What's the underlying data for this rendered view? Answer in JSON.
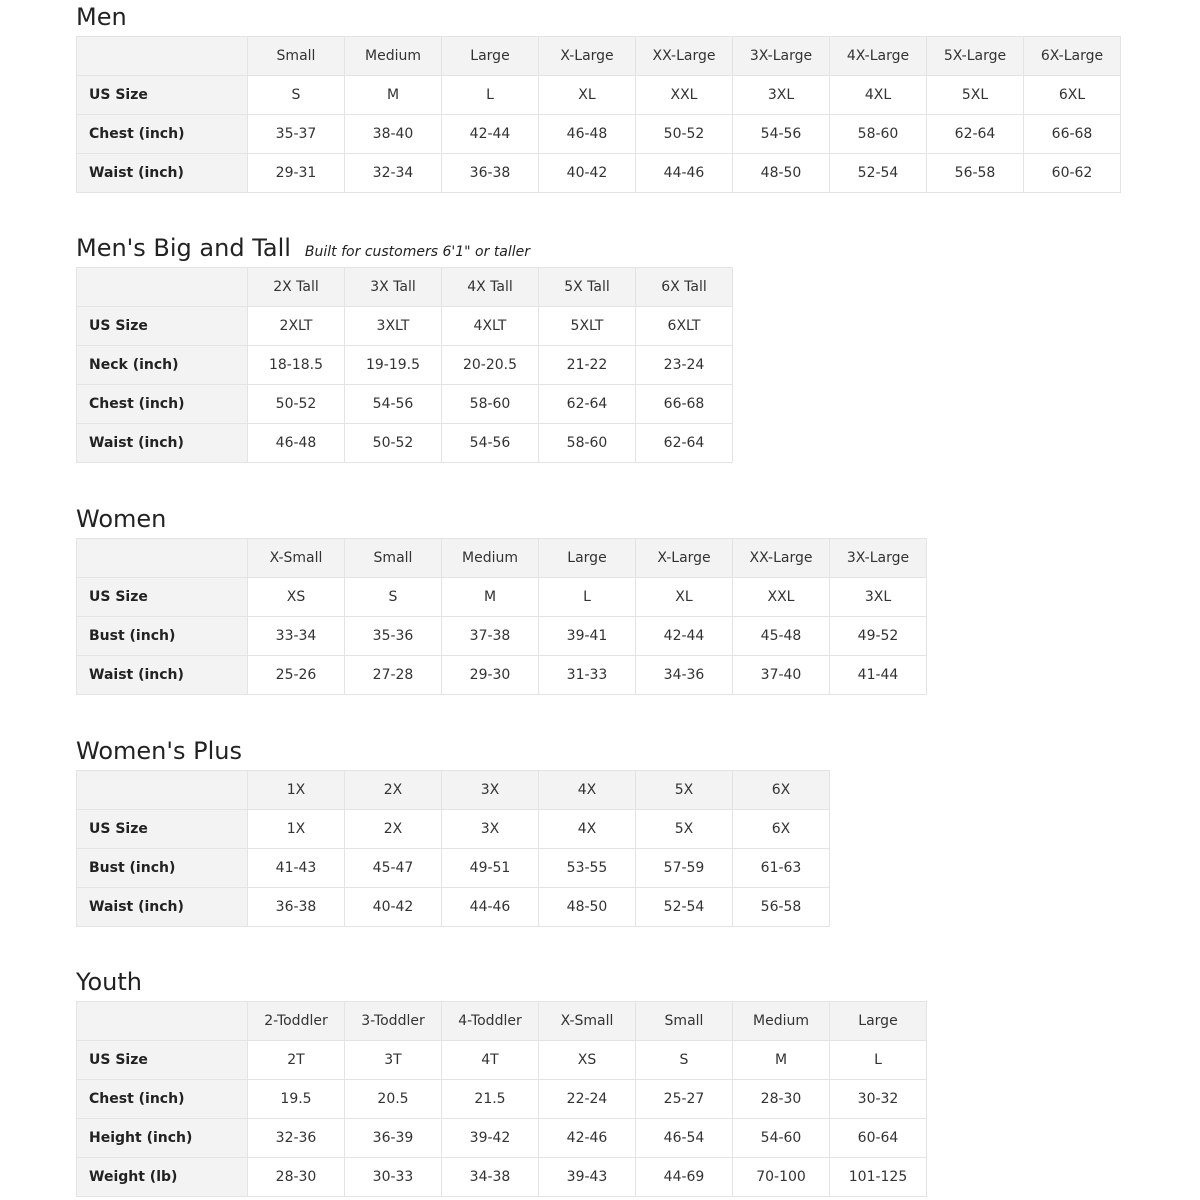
{
  "sections": [
    {
      "title": "Men",
      "note": "",
      "headers": [
        "Small",
        "Medium",
        "Large",
        "X-Large",
        "XX-Large",
        "3X-Large",
        "4X-Large",
        "5X-Large",
        "6X-Large"
      ],
      "rows": [
        {
          "label": "US Size",
          "values": [
            "S",
            "M",
            "L",
            "XL",
            "XXL",
            "3XL",
            "4XL",
            "5XL",
            "6XL"
          ]
        },
        {
          "label": "Chest (inch)",
          "values": [
            "35-37",
            "38-40",
            "42-44",
            "46-48",
            "50-52",
            "54-56",
            "58-60",
            "62-64",
            "66-68"
          ]
        },
        {
          "label": "Waist (inch)",
          "values": [
            "29-31",
            "32-34",
            "36-38",
            "40-42",
            "44-46",
            "48-50",
            "52-54",
            "56-58",
            "60-62"
          ]
        }
      ]
    },
    {
      "title": "Men's Big and Tall",
      "note": "Built for customers 6'1\" or taller",
      "headers": [
        "2X Tall",
        "3X Tall",
        "4X Tall",
        "5X Tall",
        "6X Tall"
      ],
      "rows": [
        {
          "label": "US Size",
          "values": [
            "2XLT",
            "3XLT",
            "4XLT",
            "5XLT",
            "6XLT"
          ]
        },
        {
          "label": "Neck (inch)",
          "values": [
            "18-18.5",
            "19-19.5",
            "20-20.5",
            "21-22",
            "23-24"
          ]
        },
        {
          "label": "Chest (inch)",
          "values": [
            "50-52",
            "54-56",
            "58-60",
            "62-64",
            "66-68"
          ]
        },
        {
          "label": "Waist (inch)",
          "values": [
            "46-48",
            "50-52",
            "54-56",
            "58-60",
            "62-64"
          ]
        }
      ]
    },
    {
      "title": "Women",
      "note": "",
      "headers": [
        "X-Small",
        "Small",
        "Medium",
        "Large",
        "X-Large",
        "XX-Large",
        "3X-Large"
      ],
      "rows": [
        {
          "label": "US Size",
          "values": [
            "XS",
            "S",
            "M",
            "L",
            "XL",
            "XXL",
            "3XL"
          ]
        },
        {
          "label": "Bust (inch)",
          "values": [
            "33-34",
            "35-36",
            "37-38",
            "39-41",
            "42-44",
            "45-48",
            "49-52"
          ]
        },
        {
          "label": "Waist (inch)",
          "values": [
            "25-26",
            "27-28",
            "29-30",
            "31-33",
            "34-36",
            "37-40",
            "41-44"
          ]
        }
      ]
    },
    {
      "title": "Women's  Plus",
      "note": "",
      "headers": [
        "1X",
        "2X",
        "3X",
        "4X",
        "5X",
        "6X"
      ],
      "rows": [
        {
          "label": "US Size",
          "values": [
            "1X",
            "2X",
            "3X",
            "4X",
            "5X",
            "6X"
          ]
        },
        {
          "label": "Bust (inch)",
          "values": [
            "41-43",
            "45-47",
            "49-51",
            "53-55",
            "57-59",
            "61-63"
          ]
        },
        {
          "label": "Waist (inch)",
          "values": [
            "36-38",
            "40-42",
            "44-46",
            "48-50",
            "52-54",
            "56-58"
          ]
        }
      ]
    },
    {
      "title": "Youth",
      "note": "",
      "headers": [
        "2-Toddler",
        "3-Toddler",
        "4-Toddler",
        "X-Small",
        "Small",
        "Medium",
        "Large"
      ],
      "rows": [
        {
          "label": "US Size",
          "values": [
            "2T",
            "3T",
            "4T",
            "XS",
            "S",
            "M",
            "L"
          ]
        },
        {
          "label": "Chest (inch)",
          "values": [
            "19.5",
            "20.5",
            "21.5",
            "22-24",
            "25-27",
            "28-30",
            "30-32"
          ]
        },
        {
          "label": "Height (inch)",
          "values": [
            "32-36",
            "36-39",
            "39-42",
            "42-46",
            "46-54",
            "54-60",
            "60-64"
          ]
        },
        {
          "label": "Weight (lb)",
          "values": [
            "28-30",
            "30-33",
            "34-38",
            "39-43",
            "44-69",
            "70-100",
            "101-125"
          ]
        }
      ]
    }
  ]
}
